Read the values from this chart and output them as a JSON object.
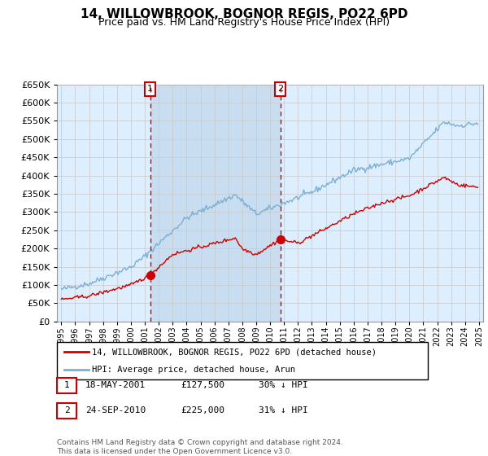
{
  "title": "14, WILLOWBROOK, BOGNOR REGIS, PO22 6PD",
  "subtitle": "Price paid vs. HM Land Registry's House Price Index (HPI)",
  "legend_line1": "14, WILLOWBROOK, BOGNOR REGIS, PO22 6PD (detached house)",
  "legend_line2": "HPI: Average price, detached house, Arun",
  "sale1_label": "1",
  "sale1_date": "18-MAY-2001",
  "sale1_price": "£127,500",
  "sale1_hpi": "30% ↓ HPI",
  "sale2_label": "2",
  "sale2_date": "24-SEP-2010",
  "sale2_price": "£225,000",
  "sale2_hpi": "31% ↓ HPI",
  "footer": "Contains HM Land Registry data © Crown copyright and database right 2024.\nThis data is licensed under the Open Government Licence v3.0.",
  "hpi_color": "#7bafd4",
  "price_color": "#cc0000",
  "marker_color": "#cc0000",
  "bg_color": "#ddeeff",
  "shade_color": "#c8ddf0",
  "plot_bg": "#ffffff",
  "grid_color": "#c8c8c8",
  "ylim": [
    0,
    650000
  ],
  "yticks": [
    0,
    50000,
    100000,
    150000,
    200000,
    250000,
    300000,
    350000,
    400000,
    450000,
    500000,
    550000,
    600000,
    650000
  ],
  "sale1_year": 2001.38,
  "sale1_value": 127500,
  "sale2_year": 2010.73,
  "sale2_value": 225000,
  "xstart": 1995,
  "xend": 2025
}
